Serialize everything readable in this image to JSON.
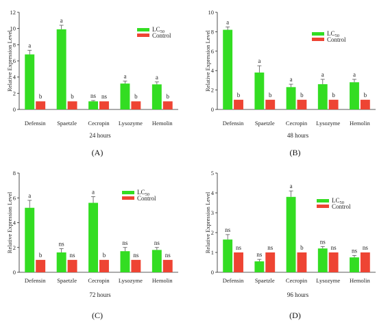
{
  "colors": {
    "lc50": "#33dd22",
    "control": "#ee4433",
    "axis": "#222222",
    "error": "#555555"
  },
  "panels": [
    {
      "id": "A",
      "panel_label": "(A)",
      "time_label": "24 hours",
      "ylabel": "Relative Expression Level",
      "legend": {
        "lc50": "LC",
        "lc50_sub": "50",
        "control": "Control"
      }
    },
    {
      "id": "B",
      "panel_label": "(B)",
      "time_label": "48 hours",
      "ylabel": "Relative Expression Level",
      "legend": {
        "lc50": "LC",
        "lc50_sub": "50",
        "control": "Control"
      }
    },
    {
      "id": "C",
      "panel_label": "(C)",
      "time_label": "72 hours",
      "ylabel": "Relative Expression Level",
      "legend": {
        "lc50": "LC",
        "lc50_sub": "50",
        "control": "Control"
      }
    },
    {
      "id": "D",
      "panel_label": "(D)",
      "time_label": "96 hours",
      "ylabel": "Relative Expression Level",
      "legend": {
        "lc50": "LC",
        "lc50_sub": "50",
        "control": "Control"
      }
    }
  ],
  "chart_data": [
    {
      "type": "bar",
      "panel": "A",
      "ylim": [
        0,
        12
      ],
      "yticks": [
        0,
        2,
        4,
        6,
        8,
        10,
        12
      ],
      "categories": [
        "Defensin",
        "Spaetzle",
        "Cecropin",
        "Lysozyme",
        "Hemolin"
      ],
      "series": [
        {
          "name": "LC50",
          "values": [
            6.8,
            9.9,
            1.0,
            3.2,
            3.1
          ],
          "errors": [
            0.5,
            0.5,
            0.1,
            0.3,
            0.3
          ],
          "sig": [
            "a",
            "a",
            "ns",
            "a",
            "a"
          ]
        },
        {
          "name": "Control",
          "values": [
            1.0,
            1.0,
            1.0,
            1.0,
            1.0
          ],
          "errors": [
            0,
            0,
            0,
            0,
            0
          ],
          "sig": [
            "b",
            "b",
            "ns",
            "b",
            "b"
          ]
        }
      ]
    },
    {
      "type": "bar",
      "panel": "B",
      "ylim": [
        0,
        10
      ],
      "yticks": [
        0,
        2,
        4,
        6,
        8,
        10
      ],
      "categories": [
        "Defensin",
        "Spaetzle",
        "Cecropin",
        "Lysozyme",
        "Hemolin"
      ],
      "series": [
        {
          "name": "LC50",
          "values": [
            8.2,
            3.8,
            2.3,
            2.6,
            2.8
          ],
          "errors": [
            0.3,
            0.7,
            0.3,
            0.5,
            0.3
          ],
          "sig": [
            "a",
            "a",
            "a",
            "a",
            "a"
          ]
        },
        {
          "name": "Control",
          "values": [
            1.0,
            1.0,
            1.0,
            1.0,
            1.0
          ],
          "errors": [
            0,
            0,
            0,
            0,
            0
          ],
          "sig": [
            "b",
            "b",
            "b",
            "b",
            "b"
          ]
        }
      ]
    },
    {
      "type": "bar",
      "panel": "C",
      "ylim": [
        0,
        8
      ],
      "yticks": [
        0,
        2,
        4,
        6,
        8
      ],
      "categories": [
        "Defensin",
        "Spaetzle",
        "Cecropin",
        "Lysozyme",
        "Hemolin"
      ],
      "series": [
        {
          "name": "LC50",
          "values": [
            5.2,
            1.6,
            5.6,
            1.7,
            1.8
          ],
          "errors": [
            0.6,
            0.3,
            0.5,
            0.3,
            0.2
          ],
          "sig": [
            "a",
            "ns",
            "a",
            "ns",
            "ns"
          ]
        },
        {
          "name": "Control",
          "values": [
            1.0,
            1.0,
            1.0,
            1.0,
            1.0
          ],
          "errors": [
            0,
            0,
            0,
            0,
            0
          ],
          "sig": [
            "b",
            "ns",
            "b",
            "ns",
            "ns"
          ]
        }
      ]
    },
    {
      "type": "bar",
      "panel": "D",
      "ylim": [
        0,
        5
      ],
      "yticks": [
        0,
        1,
        2,
        3,
        4,
        5
      ],
      "categories": [
        "Defensin",
        "Spaetzle",
        "Cecropin",
        "Lysozyme",
        "Hemolin"
      ],
      "series": [
        {
          "name": "LC50",
          "values": [
            1.65,
            0.55,
            3.8,
            1.2,
            0.75
          ],
          "errors": [
            0.25,
            0.1,
            0.3,
            0.1,
            0.1
          ],
          "sig": [
            "ns",
            "ns",
            "a",
            "ns",
            "ns"
          ]
        },
        {
          "name": "Control",
          "values": [
            1.0,
            1.0,
            1.0,
            1.0,
            1.0
          ],
          "errors": [
            0,
            0,
            0,
            0,
            0
          ],
          "sig": [
            "ns",
            "ns",
            "b",
            "ns",
            "ns"
          ]
        }
      ]
    }
  ]
}
